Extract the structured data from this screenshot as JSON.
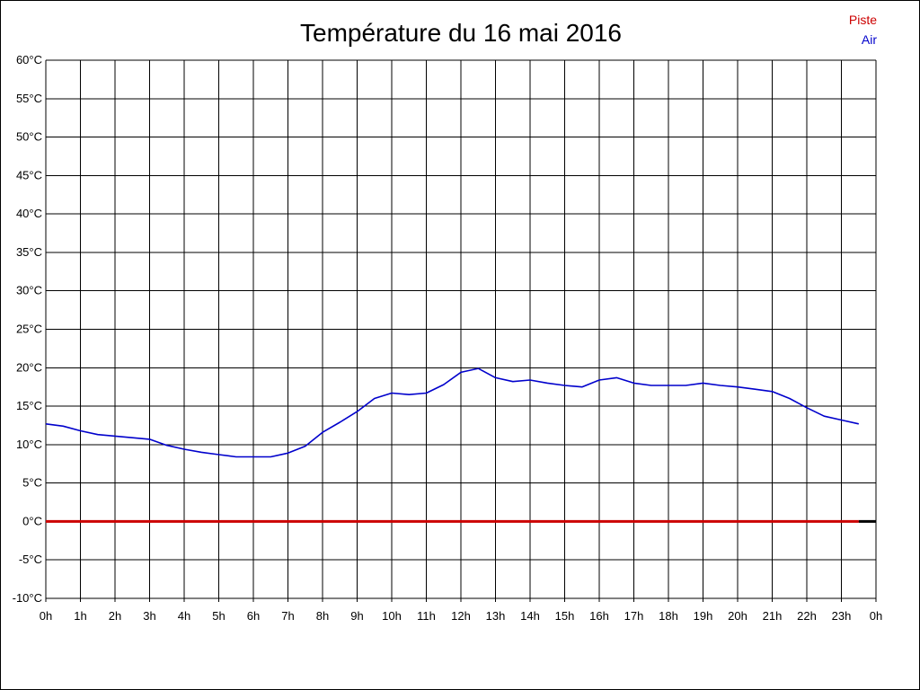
{
  "chart_data": {
    "type": "line",
    "title": "Température du 16 mai 2016",
    "y_ticks": [
      "60°C",
      "55°C",
      "50°C",
      "45°C",
      "40°C",
      "35°C",
      "30°C",
      "25°C",
      "20°C",
      "15°C",
      "10°C",
      "5°C",
      "0°C",
      "-5°C",
      "-10°C"
    ],
    "x_ticks": [
      "0h",
      "1h",
      "2h",
      "3h",
      "4h",
      "5h",
      "6h",
      "7h",
      "8h",
      "9h",
      "10h",
      "11h",
      "12h",
      "13h",
      "14h",
      "15h",
      "16h",
      "17h",
      "18h",
      "19h",
      "20h",
      "21h",
      "22h",
      "23h",
      "0h"
    ],
    "ylim": [
      -10,
      60
    ],
    "xlim": [
      0,
      24
    ],
    "grid": true,
    "legend_position": "top-right",
    "series": [
      {
        "name": "Piste",
        "color": "#cc0000",
        "x": [
          0,
          23.5
        ],
        "y": [
          0,
          0
        ]
      },
      {
        "name": "Air",
        "color": "#0000cc",
        "x": [
          0,
          0.5,
          1,
          1.5,
          2,
          2.5,
          3,
          3.5,
          4,
          4.5,
          5,
          5.5,
          6,
          6.5,
          7,
          7.5,
          8,
          8.5,
          9,
          9.5,
          10,
          10.5,
          11,
          11.5,
          12,
          12.5,
          13,
          13.5,
          14,
          14.5,
          15,
          15.5,
          16,
          16.5,
          17,
          17.5,
          18,
          18.5,
          19,
          19.5,
          20,
          20.5,
          21,
          21.5,
          22,
          22.5,
          23,
          23.5
        ],
        "y": [
          12.7,
          12.4,
          11.8,
          11.3,
          11.1,
          10.9,
          10.7,
          9.9,
          9.4,
          9.0,
          8.7,
          8.4,
          8.4,
          8.4,
          8.9,
          9.8,
          11.6,
          12.9,
          14.3,
          16.0,
          16.7,
          16.5,
          16.7,
          17.8,
          19.4,
          19.9,
          18.7,
          18.2,
          18.4,
          18.0,
          17.7,
          17.5,
          18.4,
          18.7,
          18.0,
          17.7,
          17.7,
          17.7,
          18.0,
          17.7,
          17.5,
          17.2,
          16.9,
          16.0,
          14.8,
          13.7,
          13.2,
          12.7
        ]
      }
    ]
  }
}
